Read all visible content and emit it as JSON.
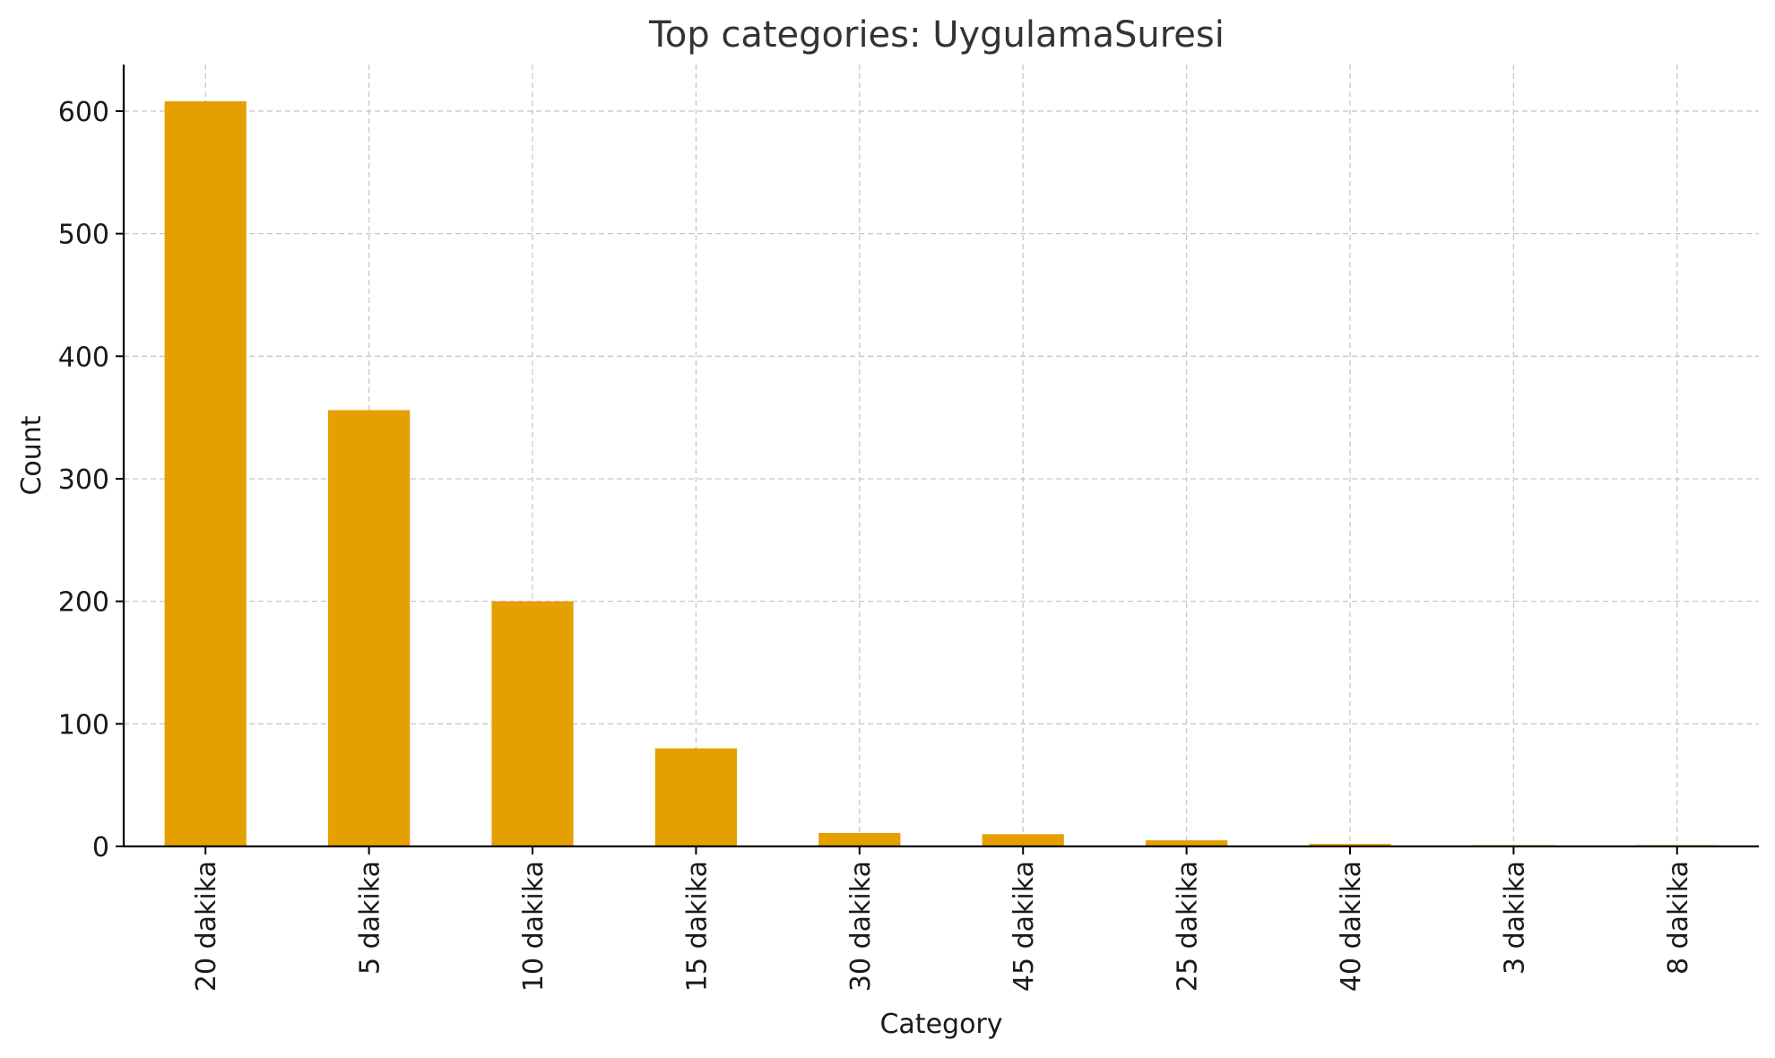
{
  "chart_data": {
    "type": "bar",
    "title": "Top categories: UygulamaSuresi",
    "xlabel": "Category",
    "ylabel": "Count",
    "categories": [
      "20 dakika",
      "5 dakika",
      "10 dakika",
      "15 dakika",
      "30 dakika",
      "45 dakika",
      "25 dakika",
      "40 dakika",
      "3 dakika",
      "8 dakika"
    ],
    "values": [
      608,
      356,
      200,
      80,
      11,
      10,
      5,
      2,
      1,
      1
    ],
    "ylim": [
      0,
      638
    ],
    "yticks": [
      0,
      100,
      200,
      300,
      400,
      500,
      600
    ],
    "grid": true,
    "bar_color": "#E69F00"
  }
}
